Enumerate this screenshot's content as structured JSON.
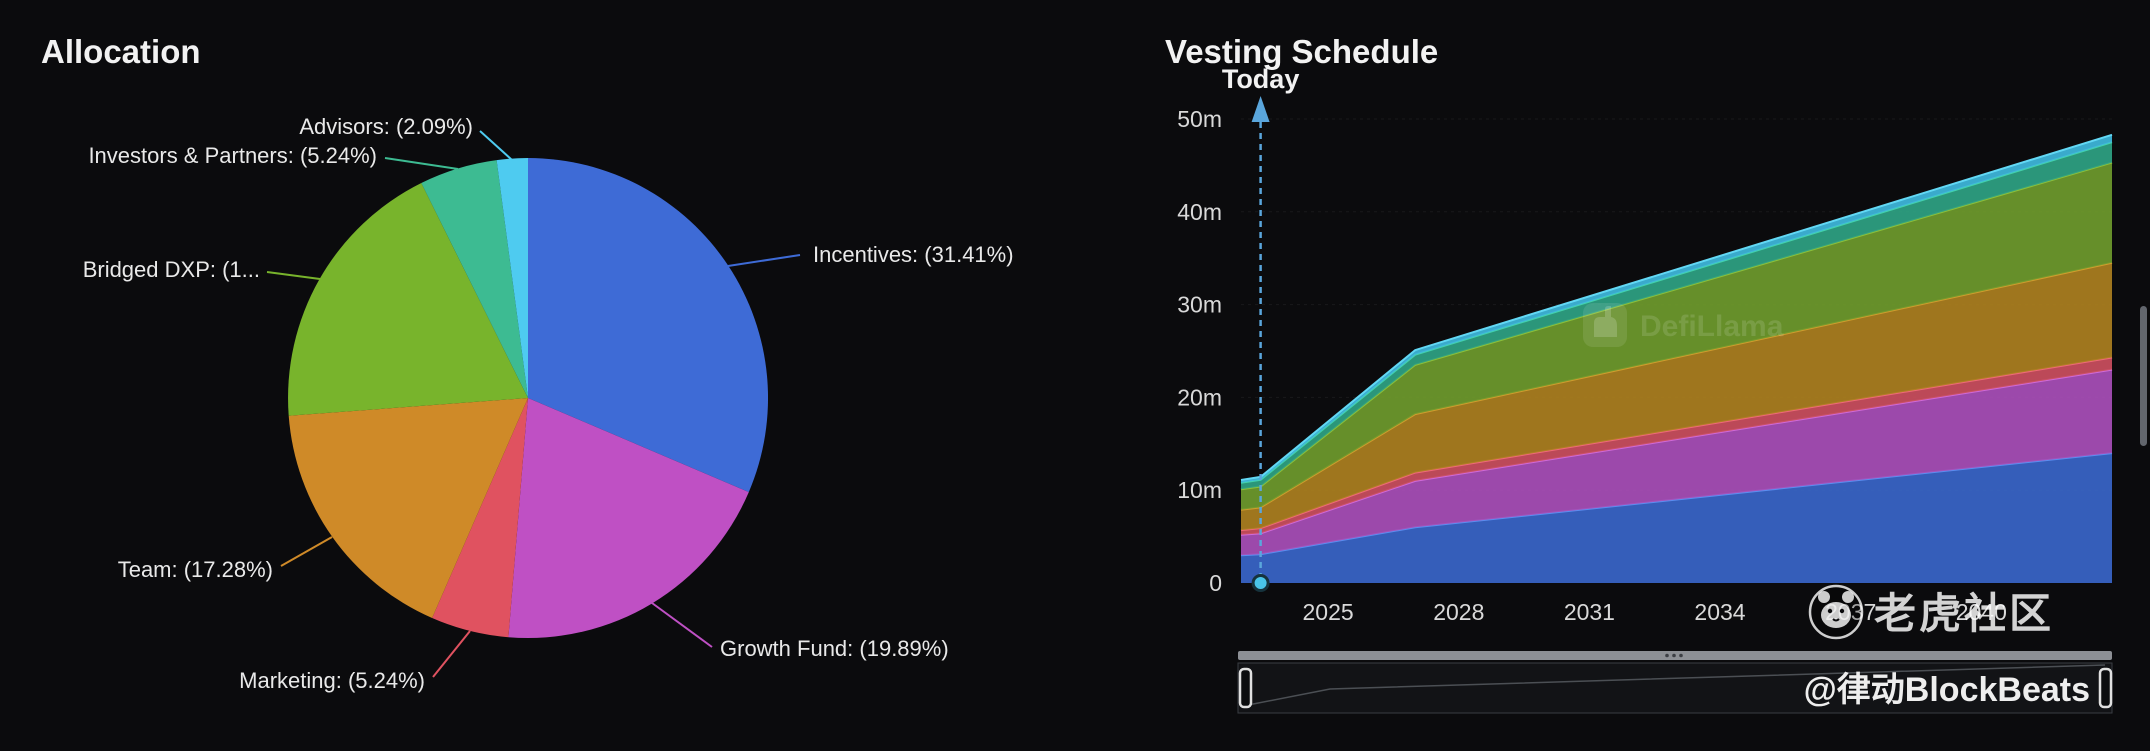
{
  "watermarks": {
    "defillama": "DefiLlama",
    "tiger_community": "老虎社区",
    "blockbeats": "@律动BlockBeats"
  },
  "chart_data": [
    {
      "type": "pie",
      "title": "Allocation",
      "slices": [
        {
          "name": "Incentives",
          "label": "Incentives: (31.41%)",
          "pct": 31.41,
          "color": "#3e6bd6"
        },
        {
          "name": "Growth Fund",
          "label": "Growth Fund: (19.89%)",
          "pct": 19.89,
          "color": "#bf50c4"
        },
        {
          "name": "Marketing",
          "label": "Marketing: (5.24%)",
          "pct": 5.24,
          "color": "#e05260"
        },
        {
          "name": "Team",
          "label": "Team: (17.28%)",
          "pct": 17.28,
          "color": "#cf8a28"
        },
        {
          "name": "Bridged DXP",
          "label": "Bridged DXP: (1...",
          "pct": 18.85,
          "color": "#78b42c"
        },
        {
          "name": "Investors & Partners",
          "label": "Investors & Partners: (5.24%)",
          "pct": 5.24,
          "color": "#3dbb92"
        },
        {
          "name": "Advisors",
          "label": "Advisors: (2.09%)",
          "pct": 2.09,
          "color": "#4ecbf0"
        }
      ]
    },
    {
      "type": "area",
      "stacked": true,
      "title": "Vesting Schedule",
      "today": {
        "label": "Today",
        "x": 2023.45,
        "marker_color": "#49c4e8",
        "line_color": "#5aa6dc"
      },
      "x_start": 2023.0,
      "x_end": 2043.0,
      "x_ticks": [
        2025,
        2028,
        2031,
        2034,
        2037,
        2040
      ],
      "y_max_m": 50,
      "y_ticks": [
        {
          "v": 0,
          "label": "0"
        },
        {
          "v": 10,
          "label": "10m"
        },
        {
          "v": 20,
          "label": "20m"
        },
        {
          "v": 30,
          "label": "30m"
        },
        {
          "v": 40,
          "label": "40m"
        },
        {
          "v": 50,
          "label": "50m"
        }
      ],
      "x_keypoints": [
        2023.0,
        2023.45,
        2027.0,
        2043.0
      ],
      "series": [
        {
          "name": "Incentives",
          "fill": "#3a66c9",
          "stroke": "#5b8def",
          "values_m": [
            3.0,
            3.1,
            6.0,
            14.0
          ]
        },
        {
          "name": "Growth Fund",
          "fill": "#a94fb8",
          "stroke": "#cf6ad8",
          "values_m": [
            2.2,
            2.25,
            5.0,
            9.0
          ]
        },
        {
          "name": "Marketing",
          "fill": "#cc4f5e",
          "stroke": "#ee6a78",
          "values_m": [
            0.5,
            0.55,
            0.9,
            1.3
          ]
        },
        {
          "name": "Team",
          "fill": "#ad8020",
          "stroke": "#cf9c2e",
          "values_m": [
            2.2,
            2.25,
            6.3,
            10.2
          ]
        },
        {
          "name": "Bridged DXP",
          "fill": "#6f9b2d",
          "stroke": "#8cbf3a",
          "values_m": [
            2.2,
            2.25,
            5.3,
            10.8
          ]
        },
        {
          "name": "Investors & Partners",
          "fill": "#2fa383",
          "stroke": "#43d2ab",
          "values_m": [
            0.7,
            0.72,
            1.1,
            2.2
          ]
        },
        {
          "name": "Advisors",
          "fill": "#3fb8dc",
          "stroke": "#62d8f4",
          "values_m": [
            0.3,
            0.31,
            0.5,
            0.8
          ]
        }
      ]
    }
  ]
}
